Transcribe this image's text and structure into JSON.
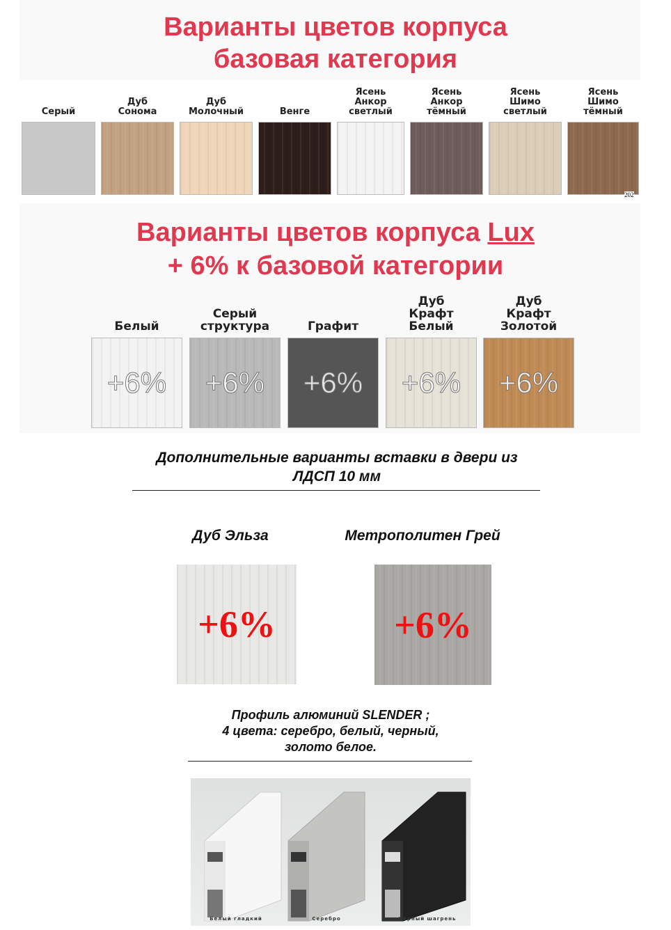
{
  "base": {
    "title_line1": "Варианты цветов корпуса",
    "title_line2": "базовая категория",
    "swatches": [
      {
        "label": "Серый",
        "color": "#c8c8c8"
      },
      {
        "label": "Дуб\nСонома",
        "color": "#c2a282"
      },
      {
        "label": "Дуб\nМолочный",
        "color": "#f0d6b8"
      },
      {
        "label": "Венге",
        "color": "#2e1e1a"
      },
      {
        "label": "Ясень\nАнкор\nсветлый",
        "color": "#f3f3f3"
      },
      {
        "label": "Ясень\nАнкор\nтёмный",
        "color": "#6e5c5c"
      },
      {
        "label": "Ясень\nШимо\nсветлый",
        "color": "#dccdb6"
      },
      {
        "label": "Ясень\nШимо\nтёмный",
        "color": "#8d6a4f"
      }
    ],
    "corner_mark": "202"
  },
  "lux": {
    "title_line1": "Варианты цветов корпуса ",
    "title_lux": "Lux",
    "title_line2": "+ 6% к базовой категории",
    "swatches": [
      {
        "label": "Белый",
        "badge": "+6%",
        "color": "#f2f2f2"
      },
      {
        "label": "Серый\nструктура",
        "badge": "+6%",
        "color": "#b9b9b9"
      },
      {
        "label": "Графит",
        "badge": "+6%",
        "color": "#555555"
      },
      {
        "label": "Дуб\nКрафт\nБелый",
        "badge": "+6%",
        "color": "#e6e2d8"
      },
      {
        "label": "Дуб\nКрафт\nЗолотой",
        "badge": "+6%",
        "color": "#c08a55"
      }
    ]
  },
  "inserts": {
    "heading_line1": "Дополнительные варианты вставки в двери из",
    "heading_line2": "ЛДСП 10 мм",
    "items": [
      {
        "label": "Дуб Эльза",
        "badge": "+6%",
        "color": "#e8e8e6"
      },
      {
        "label": "Метрополитен Грей",
        "badge": "+6%",
        "color": "#a9a8a4"
      }
    ]
  },
  "profile": {
    "line1": "Профиль алюминий SLENDER ;",
    "line2": "4 цвета: серебро, белый, черный,",
    "line3": "золото белое.",
    "captions": [
      "Белый гладкий",
      "Серебро",
      "Чёрный шагрень"
    ]
  }
}
